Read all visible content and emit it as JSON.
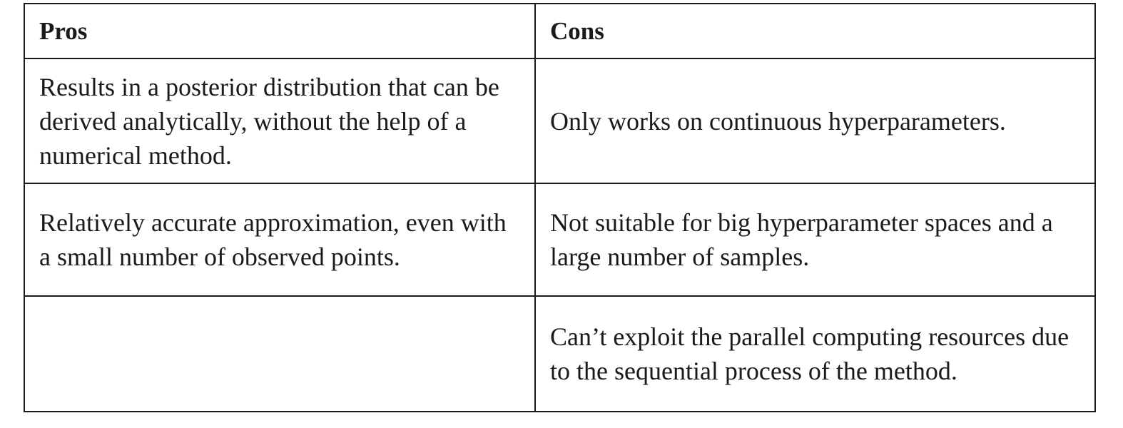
{
  "table": {
    "headers": [
      "Pros",
      "Cons"
    ],
    "rows": [
      {
        "pros": "Results in a posterior distribution that can be derived analytically, without the help of a numerical method.",
        "cons": "Only works on continuous hyperparameters."
      },
      {
        "pros": "Relatively accurate approximation, even with a small number of observed points.",
        "cons": "Not suitable for big hyperparameter spaces and a large number of samples."
      },
      {
        "pros": "",
        "cons": "Can’t exploit the parallel computing resources due to the sequential process of the method."
      }
    ]
  }
}
